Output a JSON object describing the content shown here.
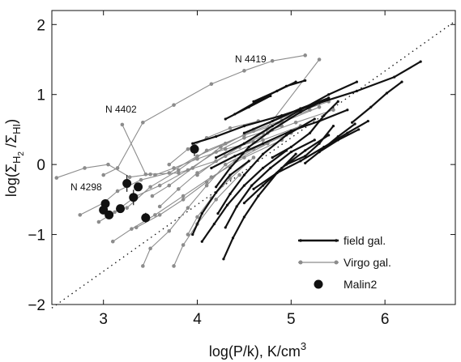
{
  "chart_data": {
    "type": "line",
    "xlabel_main": "log(P/k), K/cm",
    "xlabel_sup": "3",
    "ylabel": {
      "prefix": "log(",
      "sigma1": "Σ",
      "sub1": "H",
      "sub1_sub": "2",
      "sep": " /",
      "sigma2": "Σ",
      "sub2": "HI",
      "suffix": ")"
    },
    "xlim": [
      2.45,
      6.75
    ],
    "ylim": [
      -2,
      2.2
    ],
    "xticks": [
      "3",
      "4",
      "5",
      "6"
    ],
    "yticks": [
      "−2",
      "−1",
      "0",
      "1",
      "2"
    ],
    "xtick_values": [
      3,
      4,
      5,
      6
    ],
    "ytick_values": [
      -2,
      -1,
      0,
      1,
      2
    ],
    "grid": false,
    "legend_position": "bottom-right",
    "legend": [
      {
        "label": "field gal.",
        "style": "thick black line with small dots"
      },
      {
        "label": "Virgo gal.",
        "style": "thin gray line with gray dots"
      },
      {
        "label": "Malin2",
        "style": "large black filled circles"
      }
    ],
    "annotations": [
      {
        "text": "N 4419",
        "x": 3.7,
        "y": 1.3
      },
      {
        "text": "N 4402",
        "x": 2.9,
        "y": 0.7
      },
      {
        "text": "N 4298",
        "x": 2.62,
        "y": -0.32
      }
    ],
    "reference_line": {
      "style": "dotted",
      "x": [
        2.45,
        6.75
      ],
      "y": [
        -2.05,
        2.05
      ]
    },
    "series": [
      {
        "name": "Virgo gal.",
        "color": "#8c8c8c",
        "lines": [
          [
            [
              2.5,
              -0.19
            ],
            [
              2.8,
              -0.05
            ],
            [
              3.05,
              0.0
            ],
            [
              3.28,
              -0.18
            ],
            [
              3.5,
              -0.14
            ]
          ],
          [
            [
              3.0,
              -0.15
            ],
            [
              3.15,
              -0.05
            ],
            [
              3.42,
              0.6
            ],
            [
              3.75,
              0.85
            ],
            [
              4.15,
              1.15
            ],
            [
              4.5,
              1.34
            ],
            [
              4.8,
              1.48
            ],
            [
              5.15,
              1.56
            ]
          ],
          [
            [
              3.2,
              0.57
            ],
            [
              3.45,
              -0.14
            ],
            [
              3.8,
              -0.12
            ],
            [
              4.2,
              0.05
            ],
            [
              4.7,
              0.45
            ],
            [
              5.3,
              1.5
            ]
          ],
          [
            [
              2.75,
              -0.72
            ],
            [
              3.0,
              -0.55
            ],
            [
              3.15,
              -0.38
            ],
            [
              3.4,
              -0.22
            ],
            [
              3.7,
              -0.12
            ],
            [
              4.0,
              0.12
            ],
            [
              4.3,
              0.3
            ],
            [
              4.6,
              0.48
            ],
            [
              4.9,
              0.63
            ],
            [
              5.2,
              0.78
            ]
          ],
          [
            [
              2.95,
              -0.82
            ],
            [
              3.12,
              -0.68
            ],
            [
              3.35,
              -0.45
            ],
            [
              3.6,
              -0.3
            ],
            [
              3.9,
              -0.08
            ],
            [
              4.2,
              0.18
            ],
            [
              4.5,
              0.38
            ],
            [
              4.9,
              0.55
            ]
          ],
          [
            [
              3.25,
              -0.62
            ],
            [
              3.5,
              -0.32
            ],
            [
              3.8,
              -0.08
            ],
            [
              4.1,
              0.2
            ],
            [
              4.5,
              0.42
            ],
            [
              4.9,
              0.6
            ],
            [
              5.3,
              0.82
            ]
          ],
          [
            [
              3.42,
              -1.45
            ],
            [
              3.5,
              -1.2
            ],
            [
              3.7,
              -0.95
            ],
            [
              3.9,
              -0.62
            ],
            [
              4.1,
              -0.3
            ],
            [
              4.3,
              0.0
            ],
            [
              4.6,
              0.22
            ],
            [
              5.0,
              0.45
            ]
          ],
          [
            [
              3.1,
              -1.1
            ],
            [
              3.3,
              -0.92
            ],
            [
              3.55,
              -0.72
            ],
            [
              3.85,
              -0.45
            ],
            [
              4.15,
              -0.18
            ],
            [
              4.5,
              0.1
            ],
            [
              4.9,
              0.35
            ]
          ],
          [
            [
              3.52,
              -0.45
            ],
            [
              3.7,
              -0.3
            ],
            [
              3.95,
              -0.05
            ],
            [
              4.25,
              0.25
            ],
            [
              4.6,
              0.5
            ],
            [
              5.0,
              0.72
            ],
            [
              5.4,
              0.9
            ]
          ],
          [
            [
              3.35,
              -0.9
            ],
            [
              3.6,
              -0.72
            ],
            [
              3.85,
              -0.5
            ],
            [
              4.1,
              -0.25
            ],
            [
              4.4,
              0.05
            ],
            [
              4.75,
              0.3
            ]
          ],
          [
            [
              3.75,
              -1.45
            ],
            [
              3.85,
              -1.15
            ],
            [
              4.0,
              -0.85
            ],
            [
              4.2,
              -0.5
            ],
            [
              4.45,
              -0.15
            ]
          ],
          [
            [
              3.6,
              -0.6
            ],
            [
              3.8,
              -0.35
            ],
            [
              4.0,
              -0.12
            ],
            [
              4.3,
              0.12
            ],
            [
              4.7,
              0.35
            ],
            [
              5.1,
              0.55
            ]
          ],
          [
            [
              3.9,
              -1.0
            ],
            [
              4.0,
              -0.75
            ],
            [
              4.15,
              -0.48
            ],
            [
              4.35,
              -0.2
            ],
            [
              4.6,
              0.1
            ]
          ],
          [
            [
              3.7,
              0.0
            ],
            [
              3.9,
              0.22
            ],
            [
              4.1,
              0.38
            ],
            [
              4.35,
              0.52
            ],
            [
              4.65,
              0.62
            ]
          ],
          [
            [
              4.0,
              -0.15
            ],
            [
              4.2,
              0.05
            ],
            [
              4.45,
              0.25
            ],
            [
              4.75,
              0.45
            ],
            [
              5.05,
              0.6
            ],
            [
              5.45,
              0.78
            ]
          ],
          [
            [
              3.55,
              -0.15
            ],
            [
              3.75,
              -0.05
            ],
            [
              4.0,
              0.08
            ],
            [
              4.3,
              0.22
            ],
            [
              4.6,
              0.32
            ]
          ]
        ]
      },
      {
        "name": "field gal.",
        "color": "#111111",
        "lines": [
          [
            [
              3.95,
              0.3
            ],
            [
              4.2,
              0.4
            ],
            [
              4.5,
              0.55
            ],
            [
              4.9,
              0.7
            ],
            [
              5.3,
              0.88
            ],
            [
              5.7,
              1.05
            ],
            [
              6.1,
              1.25
            ],
            [
              6.38,
              1.47
            ]
          ],
          [
            [
              4.2,
              0.1
            ],
            [
              4.5,
              0.3
            ],
            [
              4.8,
              0.55
            ],
            [
              5.1,
              0.78
            ],
            [
              5.4,
              1.0
            ],
            [
              5.7,
              1.18
            ]
          ],
          [
            [
              4.2,
              -0.32
            ],
            [
              4.35,
              -0.05
            ],
            [
              4.55,
              0.25
            ],
            [
              4.8,
              0.5
            ],
            [
              5.1,
              0.75
            ],
            [
              5.4,
              0.95
            ]
          ],
          [
            [
              4.22,
              -0.7
            ],
            [
              4.35,
              -0.42
            ],
            [
              4.5,
              -0.15
            ],
            [
              4.7,
              0.15
            ],
            [
              4.95,
              0.42
            ],
            [
              5.25,
              0.65
            ]
          ],
          [
            [
              4.28,
              -1.35
            ],
            [
              4.38,
              -1.05
            ],
            [
              4.5,
              -0.75
            ],
            [
              4.65,
              -0.45
            ],
            [
              4.85,
              -0.12
            ],
            [
              5.05,
              0.15
            ]
          ],
          [
            [
              4.05,
              -1.1
            ],
            [
              4.18,
              -0.85
            ],
            [
              4.32,
              -0.58
            ],
            [
              4.5,
              -0.3
            ],
            [
              4.7,
              -0.05
            ],
            [
              4.95,
              0.2
            ]
          ],
          [
            [
              4.3,
              -0.9
            ],
            [
              4.42,
              -0.6
            ],
            [
              4.58,
              -0.3
            ],
            [
              4.78,
              -0.05
            ],
            [
              5.0,
              0.18
            ],
            [
              5.25,
              0.35
            ]
          ],
          [
            [
              4.5,
              -0.55
            ],
            [
              4.7,
              -0.3
            ],
            [
              4.9,
              -0.05
            ],
            [
              5.15,
              0.2
            ],
            [
              5.4,
              0.42
            ]
          ],
          [
            [
              4.6,
              -0.35
            ],
            [
              4.85,
              -0.12
            ],
            [
              5.1,
              0.05
            ],
            [
              5.35,
              0.25
            ],
            [
              5.6,
              0.45
            ],
            [
              5.82,
              0.62
            ]
          ],
          [
            [
              4.8,
              0.1
            ],
            [
              5.0,
              0.25
            ],
            [
              5.2,
              0.45
            ],
            [
              5.35,
              0.7
            ],
            [
              5.5,
              0.9
            ]
          ],
          [
            [
              4.95,
              0.0
            ],
            [
              5.15,
              0.12
            ],
            [
              5.3,
              0.3
            ],
            [
              5.45,
              0.55
            ]
          ],
          [
            [
              5.15,
              0.02
            ],
            [
              5.3,
              0.18
            ],
            [
              5.5,
              0.4
            ],
            [
              5.68,
              0.58
            ]
          ],
          [
            [
              5.3,
              0.18
            ],
            [
              5.5,
              0.35
            ],
            [
              5.72,
              0.5
            ]
          ],
          [
            [
              4.5,
              0.45
            ],
            [
              4.8,
              0.62
            ],
            [
              5.1,
              0.8
            ],
            [
              5.4,
              0.95
            ]
          ],
          [
            [
              4.4,
              0.72
            ],
            [
              4.7,
              0.95
            ],
            [
              4.95,
              1.12
            ],
            [
              5.15,
              1.2
            ]
          ],
          [
            [
              4.6,
              0.9
            ],
            [
              4.85,
              1.05
            ],
            [
              5.05,
              1.18
            ]
          ],
          [
            [
              4.15,
              -0.05
            ],
            [
              4.4,
              0.12
            ],
            [
              4.7,
              0.3
            ],
            [
              5.0,
              0.48
            ],
            [
              5.3,
              0.62
            ],
            [
              5.6,
              0.78
            ]
          ],
          [
            [
              3.95,
              -1.0
            ],
            [
              4.05,
              -0.7
            ],
            [
              4.2,
              -0.4
            ],
            [
              4.35,
              -0.15
            ],
            [
              4.55,
              0.05
            ]
          ],
          [
            [
              4.3,
              0.65
            ],
            [
              4.55,
              0.82
            ],
            [
              4.78,
              0.98
            ]
          ],
          [
            [
              5.65,
              0.6
            ],
            [
              5.85,
              0.82
            ],
            [
              6.02,
              1.02
            ],
            [
              6.18,
              1.18
            ]
          ]
        ]
      },
      {
        "name": "Malin2",
        "color": "#111111",
        "points": [
          {
            "x": 3.02,
            "y": -0.56,
            "err": 0.05
          },
          {
            "x": 3.0,
            "y": -0.65,
            "err": 0.05
          },
          {
            "x": 3.06,
            "y": -0.72,
            "err": 0.06
          },
          {
            "x": 3.18,
            "y": -0.63,
            "err": 0.05
          },
          {
            "x": 3.25,
            "y": -0.27,
            "err": 0.12
          },
          {
            "x": 3.32,
            "y": -0.47,
            "err": 0.11
          },
          {
            "x": 3.37,
            "y": -0.32,
            "err": 0.05
          },
          {
            "x": 3.45,
            "y": -0.76,
            "err": 0.07
          },
          {
            "x": 3.97,
            "y": 0.22,
            "err": 0.1
          }
        ]
      }
    ]
  }
}
